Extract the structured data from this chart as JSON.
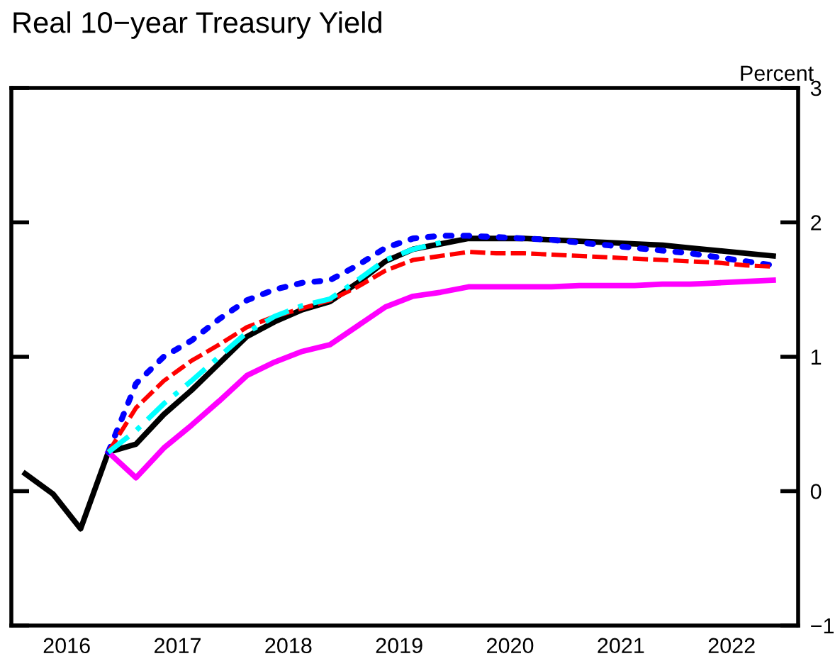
{
  "chart_data": {
    "type": "line",
    "title": "Real 10−year Treasury Yield",
    "ylabel": "Percent",
    "xlim": [
      2016.0,
      2023.1
    ],
    "xticks": [
      {
        "value": 2016.5,
        "label": "2016"
      },
      {
        "value": 2017.5,
        "label": "2017"
      },
      {
        "value": 2018.5,
        "label": "2018"
      },
      {
        "value": 2019.5,
        "label": "2019"
      },
      {
        "value": 2020.5,
        "label": "2020"
      },
      {
        "value": 2021.5,
        "label": "2021"
      },
      {
        "value": 2022.5,
        "label": "2022"
      }
    ],
    "ylim": [
      -1,
      3
    ],
    "yticks": [
      -1,
      0,
      1,
      2,
      3
    ],
    "grid": false,
    "legend": false,
    "series": [
      {
        "color": "#ff00ff",
        "line_style": "solid",
        "x": [
          2016.875,
          2017.125,
          2017.375,
          2017.625,
          2017.875,
          2018.125,
          2018.375,
          2018.625,
          2018.875,
          2019.125,
          2019.375,
          2019.625,
          2019.875,
          2020.125,
          2020.375,
          2020.625,
          2020.875,
          2021.125,
          2021.375,
          2021.625,
          2021.875,
          2022.125,
          2022.375,
          2022.625,
          2022.875
        ],
        "values": [
          0.29,
          0.1,
          0.32,
          0.49,
          0.67,
          0.86,
          0.96,
          1.04,
          1.09,
          1.23,
          1.37,
          1.45,
          1.48,
          1.52,
          1.52,
          1.52,
          1.52,
          1.53,
          1.53,
          1.53,
          1.54,
          1.54,
          1.55,
          1.56,
          1.57
        ]
      },
      {
        "color": "#ff0000",
        "line_style": "dashed",
        "x": [
          2016.875,
          2017.125,
          2017.375,
          2017.625,
          2017.875,
          2018.125,
          2018.375,
          2018.625,
          2018.875,
          2019.125,
          2019.375,
          2019.625,
          2019.875,
          2020.125,
          2020.375,
          2020.625,
          2020.875,
          2021.125,
          2021.375,
          2021.625,
          2021.875,
          2022.125,
          2022.375,
          2022.625,
          2022.875
        ],
        "values": [
          0.29,
          0.62,
          0.82,
          0.97,
          1.09,
          1.22,
          1.3,
          1.36,
          1.42,
          1.52,
          1.64,
          1.72,
          1.75,
          1.78,
          1.77,
          1.77,
          1.76,
          1.75,
          1.74,
          1.73,
          1.72,
          1.71,
          1.7,
          1.68,
          1.67
        ]
      },
      {
        "color": "#0000ff",
        "line_style": "dotted",
        "x": [
          2016.875,
          2017.125,
          2017.375,
          2017.625,
          2017.875,
          2018.125,
          2018.375,
          2018.625,
          2018.875,
          2019.125,
          2019.375,
          2019.625,
          2019.875,
          2020.125,
          2020.375,
          2020.625,
          2020.875,
          2021.125,
          2021.375,
          2021.625,
          2021.875,
          2022.125,
          2022.375,
          2022.625,
          2022.875
        ],
        "values": [
          0.29,
          0.8,
          1.0,
          1.12,
          1.28,
          1.42,
          1.5,
          1.55,
          1.57,
          1.68,
          1.81,
          1.88,
          1.9,
          1.9,
          1.89,
          1.88,
          1.87,
          1.85,
          1.83,
          1.81,
          1.79,
          1.77,
          1.74,
          1.71,
          1.68
        ]
      },
      {
        "color": "#00ffff",
        "line_style": "dashdot",
        "x": [
          2016.875,
          2017.125,
          2017.375,
          2017.625,
          2017.875,
          2018.125,
          2018.375,
          2018.625,
          2018.875,
          2019.125,
          2019.375,
          2019.625,
          2019.875
        ],
        "values": [
          0.29,
          0.45,
          0.65,
          0.82,
          1.0,
          1.18,
          1.3,
          1.38,
          1.43,
          1.57,
          1.72,
          1.8,
          1.85
        ]
      },
      {
        "color": "#000000",
        "line_style": "solid",
        "x": [
          2016.125,
          2016.375,
          2016.625,
          2016.875,
          2017.125,
          2017.375,
          2017.625,
          2017.875,
          2018.125,
          2018.375,
          2018.625,
          2018.875,
          2019.125,
          2019.375,
          2019.625,
          2019.875,
          2020.125,
          2020.375,
          2020.625,
          2020.875,
          2021.125,
          2021.375,
          2021.625,
          2021.875,
          2022.125,
          2022.375,
          2022.625,
          2022.875
        ],
        "values": [
          0.13,
          -0.02,
          -0.28,
          0.29,
          0.35,
          0.57,
          0.75,
          0.95,
          1.15,
          1.26,
          1.35,
          1.41,
          1.55,
          1.71,
          1.8,
          1.84,
          1.88,
          1.88,
          1.88,
          1.87,
          1.86,
          1.85,
          1.84,
          1.83,
          1.81,
          1.79,
          1.77,
          1.75
        ]
      }
    ]
  }
}
